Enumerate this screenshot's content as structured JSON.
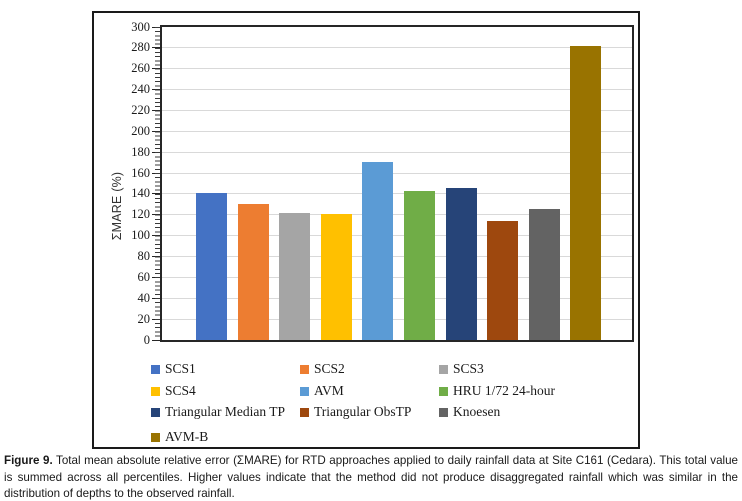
{
  "chart_data": {
    "type": "bar",
    "title": "",
    "xlabel": "",
    "ylabel": "ΣMARE (%)",
    "ylim": [
      0,
      300
    ],
    "ytick_step": 20,
    "grid": "horizontal-light-gray",
    "legend_position": "bottom-inside",
    "categories": [
      "SCS1",
      "SCS2",
      "SCS3",
      "SCS4",
      "AVM",
      "HRU 1/72 24-hour",
      "Triangular Median TP",
      "Triangular ObsTP",
      "Knoesen",
      "AVM-B"
    ],
    "values": [
      141,
      130,
      122,
      121,
      171,
      143,
      146,
      114,
      126,
      282
    ],
    "colors": [
      "#4472C4",
      "#ED7D31",
      "#A5A5A5",
      "#FFC000",
      "#5B9BD5",
      "#70AD47",
      "#264478",
      "#9E480E",
      "#636363",
      "#997300"
    ],
    "accent_colors": {
      "gridline": "#d9d9d9",
      "axis": "#262626",
      "frame": "#1a1a1a"
    }
  },
  "caption": {
    "label": "Figure 9.",
    "text": "Total mean absolute relative error (ΣMARE) for RTD approaches applied to daily rainfall data at Site C161 (Cedara). This total value is summed across all percentiles. Higher values indicate that the method did not produce disaggregated rainfall which was similar in the distribution of depths to the observed rainfall."
  }
}
